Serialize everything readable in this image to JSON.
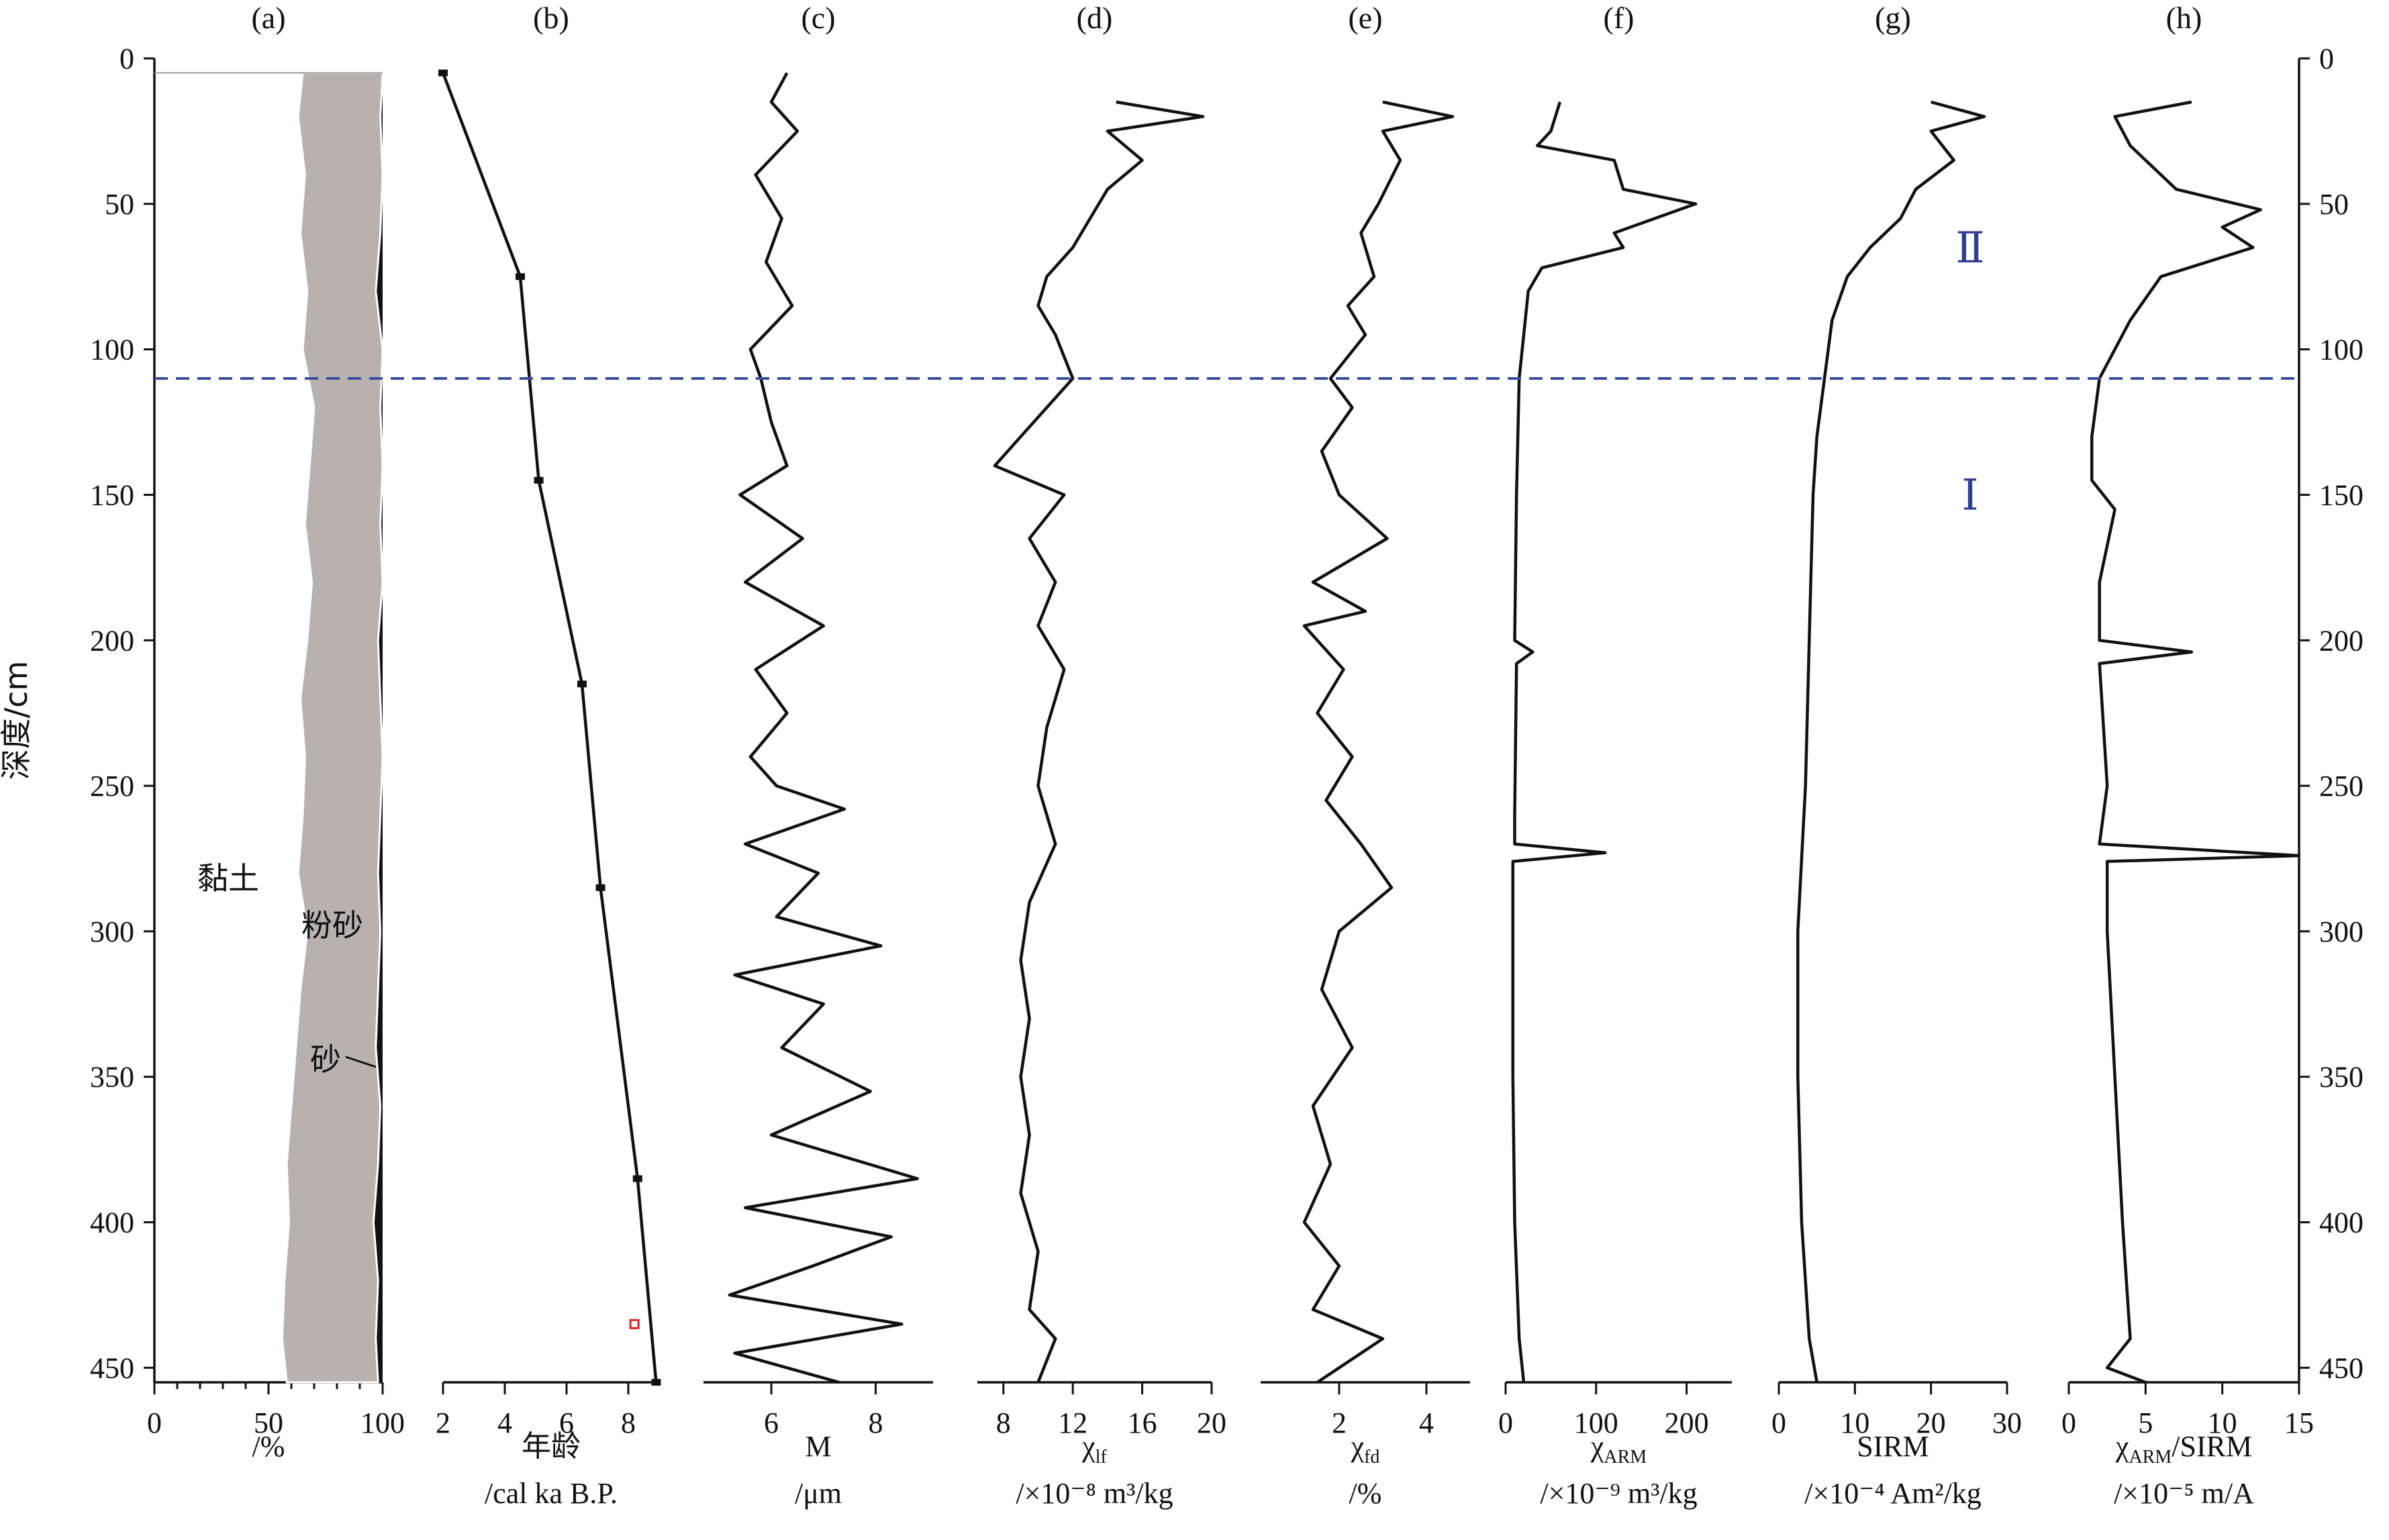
{
  "chart_data": {
    "type": "line",
    "y_axis": {
      "label": "深度/cm",
      "range": [
        0,
        455
      ],
      "ticks": [
        0,
        50,
        100,
        150,
        200,
        250,
        300,
        350,
        400,
        450
      ],
      "direction": "down"
    },
    "zone_boundary_depth": 110,
    "zones": [
      {
        "label": "Ⅱ",
        "depth": 65
      },
      {
        "label": "Ⅰ",
        "depth": 150
      }
    ],
    "panels": [
      {
        "id": "a",
        "letter": "(a)",
        "type": "area",
        "xlabel": "/%",
        "xlim": [
          0,
          100
        ],
        "xticks": [
          0,
          50,
          100
        ],
        "legend_labels": {
          "clay": "黏土",
          "silt": "粉砂",
          "sand": "砂"
        },
        "depths": [
          5,
          20,
          40,
          60,
          80,
          100,
          120,
          140,
          160,
          180,
          200,
          220,
          240,
          260,
          280,
          300,
          320,
          340,
          360,
          380,
          400,
          420,
          440,
          455
        ],
        "clay": [
          65,
          63,
          66,
          64,
          67,
          65,
          70,
          68,
          66,
          69,
          67,
          64,
          66,
          65,
          63,
          67,
          64,
          62,
          60,
          58,
          59,
          57,
          56,
          58
        ],
        "clay_plus_silt": [
          100,
          99,
          100,
          99,
          97,
          100,
          99,
          100,
          99,
          100,
          98,
          99,
          100,
          99,
          98,
          99,
          98,
          97,
          99,
          98,
          96,
          98,
          97,
          98
        ]
      },
      {
        "id": "b",
        "letter": "(b)",
        "type": "line",
        "xlabel": "年龄",
        "xunit": "/cal ka B.P.",
        "xlim": [
          2,
          9
        ],
        "xticks": [
          2,
          4,
          6,
          8
        ],
        "depths": [
          5,
          75,
          145,
          215,
          285,
          385,
          455
        ],
        "values": [
          2.0,
          4.5,
          5.1,
          6.5,
          7.1,
          8.3,
          8.9
        ],
        "outlier": {
          "depth": 435,
          "value": 8.2
        }
      },
      {
        "id": "c",
        "letter": "(c)",
        "type": "line",
        "xlabel": "M",
        "xunit": "/μm",
        "xlim": [
          4.7,
          9.1
        ],
        "xticks": [
          6,
          8
        ],
        "depths": [
          5,
          15,
          25,
          40,
          55,
          70,
          85,
          100,
          110,
          125,
          140,
          150,
          165,
          180,
          195,
          210,
          225,
          240,
          250,
          258,
          270,
          280,
          295,
          305,
          315,
          325,
          340,
          355,
          370,
          385,
          395,
          405,
          415,
          425,
          435,
          445,
          455
        ],
        "values": [
          6.3,
          6.0,
          6.5,
          5.7,
          6.2,
          5.9,
          6.4,
          5.6,
          5.8,
          6.0,
          6.3,
          5.4,
          6.6,
          5.5,
          7.0,
          5.7,
          6.3,
          5.6,
          6.1,
          7.4,
          5.5,
          6.9,
          6.1,
          8.1,
          5.3,
          7.0,
          6.2,
          7.9,
          6.0,
          8.8,
          5.5,
          8.3,
          6.8,
          5.2,
          8.5,
          5.3,
          7.3
        ]
      },
      {
        "id": "d",
        "letter": "(d)",
        "type": "line",
        "xlabel": "χlf",
        "xunit": "/×10⁻⁸ m³/kg",
        "xlim": [
          6.5,
          20
        ],
        "xticks": [
          8,
          12,
          16,
          20
        ],
        "depths": [
          15,
          20,
          25,
          35,
          45,
          55,
          65,
          75,
          85,
          95,
          110,
          120,
          130,
          140,
          150,
          165,
          180,
          195,
          210,
          230,
          250,
          270,
          290,
          310,
          330,
          350,
          370,
          390,
          410,
          430,
          440,
          455
        ],
        "values": [
          14.5,
          19.5,
          14.0,
          16.0,
          14.0,
          13.0,
          12.0,
          10.5,
          10.0,
          11.0,
          12.0,
          10.5,
          9.0,
          7.5,
          11.5,
          9.5,
          11.0,
          10.0,
          11.5,
          10.5,
          10.0,
          11.0,
          9.5,
          9.0,
          9.5,
          9.0,
          9.5,
          9.0,
          10.0,
          9.5,
          11.0,
          10.0
        ]
      },
      {
        "id": "e",
        "letter": "(e)",
        "type": "line",
        "xlabel": "χfd",
        "xunit": "/%",
        "xlim": [
          0.2,
          5.0
        ],
        "xticks": [
          2,
          4
        ],
        "depths": [
          15,
          20,
          25,
          35,
          50,
          60,
          75,
          85,
          95,
          110,
          120,
          135,
          150,
          165,
          180,
          190,
          195,
          210,
          225,
          240,
          255,
          270,
          285,
          300,
          320,
          340,
          360,
          380,
          400,
          415,
          430,
          440,
          455
        ],
        "values": [
          3.0,
          4.6,
          3.0,
          3.4,
          2.9,
          2.5,
          2.8,
          2.2,
          2.6,
          1.8,
          2.3,
          1.6,
          2.0,
          3.1,
          1.4,
          2.6,
          1.2,
          2.1,
          1.5,
          2.3,
          1.7,
          2.5,
          3.2,
          2.0,
          1.6,
          2.3,
          1.4,
          1.8,
          1.2,
          2.0,
          1.4,
          3.0,
          1.5
        ]
      },
      {
        "id": "f",
        "letter": "(f)",
        "type": "line",
        "xlabel": "χARM",
        "xunit": "/×10⁻⁹ m³/kg",
        "xlim": [
          0,
          250
        ],
        "xticks": [
          0,
          100,
          200
        ],
        "depths": [
          15,
          25,
          30,
          35,
          45,
          50,
          60,
          65,
          72,
          80,
          95,
          110,
          150,
          200,
          204,
          208,
          260,
          270,
          273,
          276,
          300,
          350,
          400,
          440,
          455
        ],
        "values": [
          60,
          50,
          35,
          120,
          130,
          210,
          120,
          130,
          40,
          25,
          20,
          15,
          12,
          10,
          30,
          12,
          10,
          10,
          110,
          8,
          8,
          8,
          10,
          15,
          20
        ]
      },
      {
        "id": "g",
        "letter": "(g)",
        "type": "line",
        "xlabel": "SIRM",
        "xunit": "/×10⁻⁴ Am²/kg",
        "xlim": [
          0,
          30
        ],
        "xticks": [
          0,
          10,
          20,
          30
        ],
        "depths": [
          15,
          20,
          25,
          35,
          45,
          55,
          65,
          75,
          90,
          110,
          130,
          150,
          200,
          250,
          300,
          350,
          400,
          440,
          455
        ],
        "values": [
          20,
          27,
          20,
          23,
          18,
          16,
          12,
          9,
          7,
          6,
          5,
          4.5,
          4,
          3.5,
          2.5,
          2.5,
          3,
          4,
          5
        ]
      },
      {
        "id": "h",
        "letter": "(h)",
        "type": "line",
        "xlabel": "χARM/SIRM",
        "xunit": "/×10⁻⁵ m/A",
        "xlim": [
          0,
          15
        ],
        "xticks": [
          0,
          5,
          10,
          15
        ],
        "depths": [
          15,
          20,
          30,
          45,
          52,
          58,
          65,
          75,
          90,
          110,
          130,
          145,
          155,
          180,
          200,
          204,
          208,
          250,
          270,
          274,
          276,
          300,
          350,
          400,
          440,
          450,
          455
        ],
        "values": [
          8,
          3,
          4,
          7,
          12.5,
          10,
          12,
          6,
          4,
          2,
          1.5,
          1.5,
          3,
          2,
          2,
          8,
          2,
          2.5,
          2,
          15,
          2.5,
          2.5,
          3,
          3.5,
          4,
          2.5,
          5
        ]
      }
    ]
  }
}
